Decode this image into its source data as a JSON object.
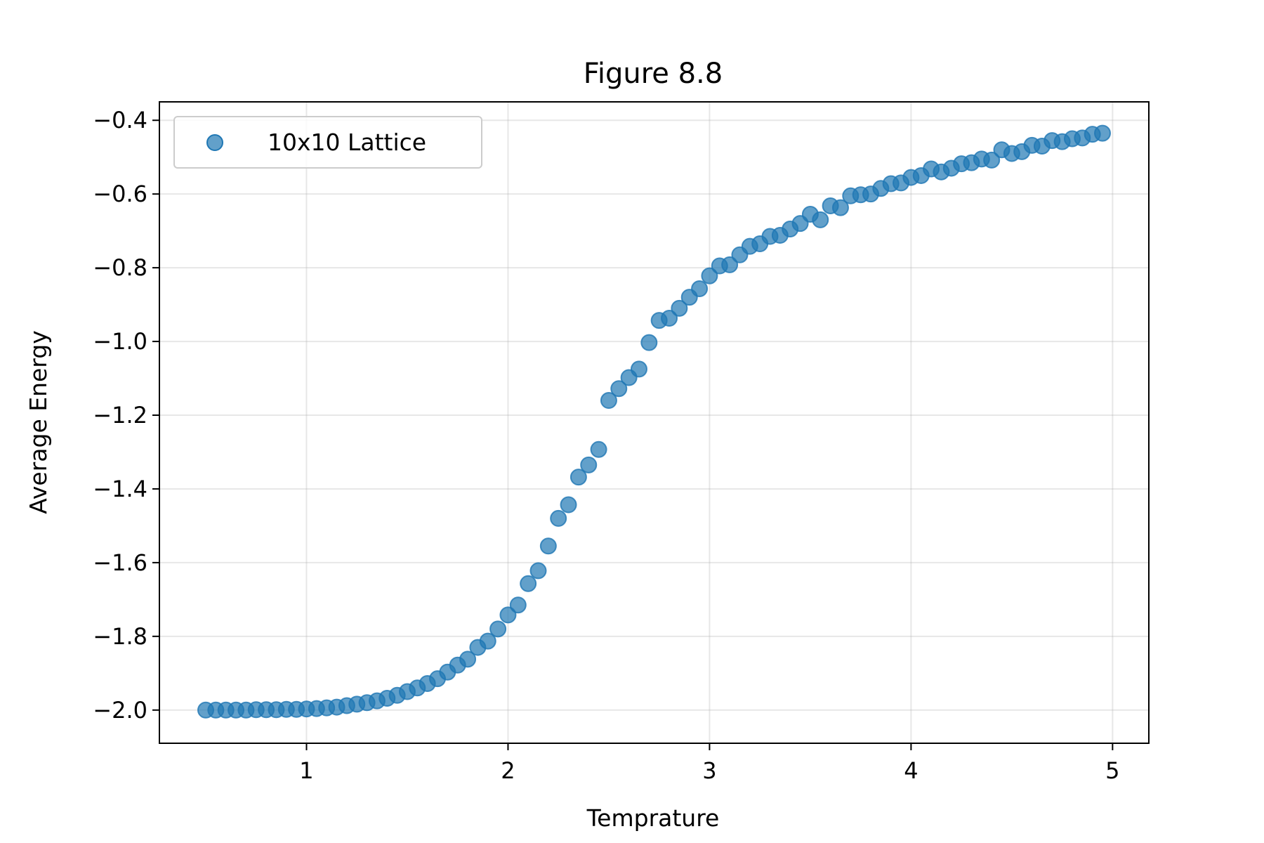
{
  "chart_data": {
    "type": "scatter",
    "title": "Figure 8.8",
    "xlabel": "Temprature",
    "ylabel": "Average Energy",
    "xlim": [
      0.27,
      5.18
    ],
    "ylim": [
      -2.09,
      -0.35
    ],
    "xticks": [
      1,
      2,
      3,
      4,
      5
    ],
    "xtick_labels": [
      "1",
      "2",
      "3",
      "4",
      "5"
    ],
    "yticks": [
      -2.0,
      -1.8,
      -1.6,
      -1.4,
      -1.2,
      -1.0,
      -0.8,
      -0.6,
      -0.4
    ],
    "ytick_labels": [
      "−2.0",
      "−1.8",
      "−1.6",
      "−1.4",
      "−1.2",
      "−1.0",
      "−0.8",
      "−0.6",
      "−0.4"
    ],
    "grid": true,
    "legend_position": "top-left",
    "series": [
      {
        "name": "10x10 Lattice",
        "color": "#1f77b4",
        "x": [
          0.5,
          0.55,
          0.6,
          0.65,
          0.7,
          0.75,
          0.8,
          0.85,
          0.9,
          0.95,
          1.0,
          1.05,
          1.1,
          1.15,
          1.2,
          1.25,
          1.3,
          1.35,
          1.4,
          1.45,
          1.5,
          1.55,
          1.6,
          1.65,
          1.7,
          1.75,
          1.8,
          1.85,
          1.9,
          1.95,
          2.0,
          2.05,
          2.1,
          2.15,
          2.2,
          2.25,
          2.3,
          2.35,
          2.4,
          2.45,
          2.5,
          2.55,
          2.6,
          2.65,
          2.7,
          2.75,
          2.8,
          2.85,
          2.9,
          2.95,
          3.0,
          3.05,
          3.1,
          3.15,
          3.2,
          3.25,
          3.3,
          3.35,
          3.4,
          3.45,
          3.5,
          3.55,
          3.6,
          3.65,
          3.7,
          3.75,
          3.8,
          3.85,
          3.9,
          3.95,
          4.0,
          4.05,
          4.1,
          4.15,
          4.2,
          4.25,
          4.3,
          4.35,
          4.4,
          4.45,
          4.5,
          4.55,
          4.6,
          4.65,
          4.7,
          4.75,
          4.8,
          4.85,
          4.9,
          4.95
        ],
        "y": [
          -2.0,
          -2.0,
          -2.0,
          -2.0,
          -2.0,
          -1.999,
          -1.999,
          -1.999,
          -1.998,
          -1.998,
          -1.997,
          -1.996,
          -1.994,
          -1.992,
          -1.988,
          -1.984,
          -1.98,
          -1.975,
          -1.968,
          -1.96,
          -1.95,
          -1.94,
          -1.928,
          -1.915,
          -1.897,
          -1.878,
          -1.862,
          -1.83,
          -1.813,
          -1.78,
          -1.742,
          -1.715,
          -1.657,
          -1.622,
          -1.555,
          -1.48,
          -1.443,
          -1.368,
          -1.335,
          -1.293,
          -1.16,
          -1.128,
          -1.098,
          -1.075,
          -1.003,
          -0.943,
          -0.937,
          -0.91,
          -0.88,
          -0.857,
          -0.822,
          -0.795,
          -0.792,
          -0.765,
          -0.742,
          -0.735,
          -0.715,
          -0.712,
          -0.695,
          -0.68,
          -0.655,
          -0.67,
          -0.632,
          -0.637,
          -0.605,
          -0.602,
          -0.6,
          -0.585,
          -0.572,
          -0.57,
          -0.555,
          -0.55,
          -0.532,
          -0.54,
          -0.53,
          -0.518,
          -0.515,
          -0.505,
          -0.508,
          -0.48,
          -0.49,
          -0.485,
          -0.468,
          -0.47,
          -0.455,
          -0.458,
          -0.45,
          -0.448,
          -0.438,
          -0.435
        ]
      }
    ]
  }
}
